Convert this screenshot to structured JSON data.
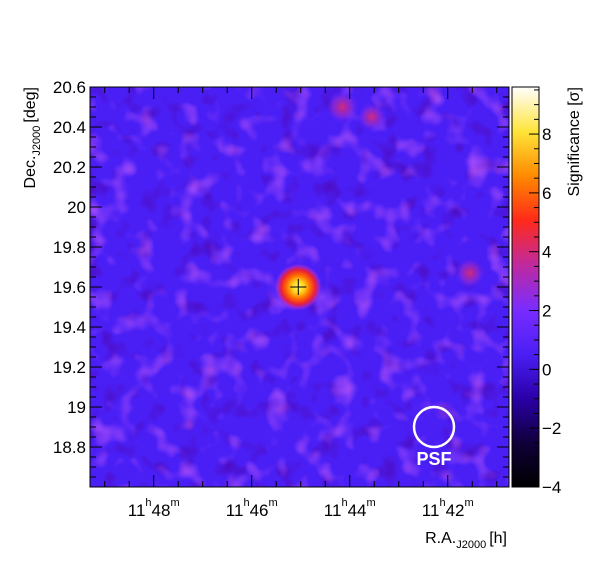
{
  "chart_data": {
    "type": "heatmap",
    "title": "",
    "xlabel": {
      "main": "R.A.",
      "sub": "J2000",
      "unit": "[h]"
    },
    "ylabel": {
      "main": "Dec.",
      "sub": "J2000",
      "unit": "[deg]"
    },
    "colorbar_label": "Significance [σ]",
    "xlim_minutes_of_hour11": [
      49.3,
      40.75
    ],
    "ylim": [
      18.6,
      20.6
    ],
    "x_ticks": [
      {
        "value": 48,
        "h": "11",
        "m": "48"
      },
      {
        "value": 46,
        "h": "11",
        "m": "46"
      },
      {
        "value": 44,
        "h": "11",
        "m": "44"
      },
      {
        "value": 42,
        "h": "11",
        "m": "42"
      }
    ],
    "y_ticks": [
      {
        "value": 18.8,
        "label": "18.8"
      },
      {
        "value": 19.0,
        "label": "19"
      },
      {
        "value": 19.2,
        "label": "19.2"
      },
      {
        "value": 19.4,
        "label": "19.4"
      },
      {
        "value": 19.6,
        "label": "19.6"
      },
      {
        "value": 19.8,
        "label": "19.8"
      },
      {
        "value": 20.0,
        "label": "20"
      },
      {
        "value": 20.2,
        "label": "20.2"
      },
      {
        "value": 20.4,
        "label": "20.4"
      },
      {
        "value": 20.6,
        "label": "20.6"
      }
    ],
    "colorbar_range": [
      -4,
      9.6
    ],
    "colorbar_ticks": [
      {
        "value": -4,
        "label": "−4"
      },
      {
        "value": -2,
        "label": "−2"
      },
      {
        "value": 0,
        "label": "0"
      },
      {
        "value": 2,
        "label": "2"
      },
      {
        "value": 4,
        "label": "4"
      },
      {
        "value": 6,
        "label": "6"
      },
      {
        "value": 8,
        "label": "8"
      }
    ],
    "colormap": [
      "#000000",
      "#10003a",
      "#2a00a8",
      "#4b1ff5",
      "#7a2cff",
      "#c02a9e",
      "#ff2a1a",
      "#ff8a00",
      "#ffe43a",
      "#ffffff"
    ],
    "hotspot": {
      "ra_minutes": 45.05,
      "dec": 19.6,
      "peak_significance": 9.5,
      "marker": "cross"
    },
    "secondary_spots": [
      {
        "ra_minutes": 44.15,
        "dec": 20.5,
        "significance": 3.5
      },
      {
        "ra_minutes": 43.55,
        "dec": 20.45,
        "significance": 2.8
      },
      {
        "ra_minutes": 41.55,
        "dec": 19.67,
        "significance": 3.0
      }
    ],
    "psf": {
      "label": "PSF",
      "ra_minutes": 42.28,
      "dec": 18.9,
      "radius_deg": 0.1
    }
  }
}
